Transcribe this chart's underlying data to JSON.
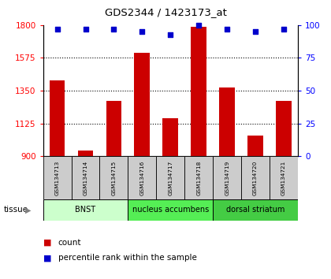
{
  "title": "GDS2344 / 1423173_at",
  "samples": [
    "GSM134713",
    "GSM134714",
    "GSM134715",
    "GSM134716",
    "GSM134717",
    "GSM134718",
    "GSM134719",
    "GSM134720",
    "GSM134721"
  ],
  "counts": [
    1420,
    940,
    1280,
    1610,
    1160,
    1790,
    1370,
    1040,
    1280
  ],
  "percentiles": [
    97,
    97,
    97,
    95,
    93,
    100,
    97,
    95,
    97
  ],
  "ylim_left": [
    900,
    1800
  ],
  "ylim_right": [
    0,
    100
  ],
  "yticks_left": [
    900,
    1125,
    1350,
    1575,
    1800
  ],
  "yticks_right": [
    0,
    25,
    50,
    75,
    100
  ],
  "bar_color": "#cc0000",
  "dot_color": "#0000cc",
  "tissue_groups": [
    {
      "label": "BNST",
      "start": 0,
      "end": 3,
      "color": "#ccffcc"
    },
    {
      "label": "nucleus accumbens",
      "start": 3,
      "end": 6,
      "color": "#55ee55"
    },
    {
      "label": "dorsal striatum",
      "start": 6,
      "end": 9,
      "color": "#44cc44"
    }
  ],
  "legend_count_label": "count",
  "legend_pct_label": "percentile rank within the sample",
  "tissue_label": "tissue",
  "bar_width": 0.55,
  "sample_box_color": "#cccccc",
  "background_color": "#ffffff",
  "gridline_yticks": [
    1125,
    1350,
    1575
  ]
}
